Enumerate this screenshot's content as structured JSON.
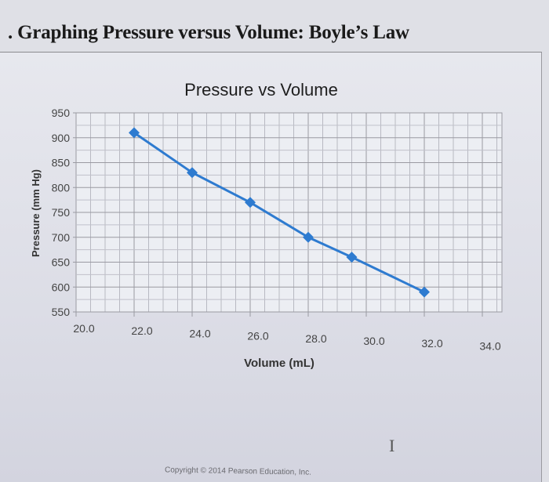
{
  "page": {
    "heading": "Graphing Pressure versus Volume: Boyle’s Law",
    "bullet": ".",
    "copyright": "Copyright © 2014 Pearson Education, Inc.",
    "cursor_glyph": "I"
  },
  "chart_data": {
    "type": "line",
    "title": "Pressure vs Volume",
    "xlabel": "Volume (mL)",
    "ylabel": "Pressure (mm Hg)",
    "xlim": [
      20.0,
      34.0
    ],
    "ylim": [
      550,
      950
    ],
    "x_ticks": [
      "20.0",
      "22.0",
      "24.0",
      "26.0",
      "28.0",
      "30.0",
      "32.0",
      "34.0"
    ],
    "y_ticks": [
      "950",
      "900",
      "850",
      "800",
      "750",
      "700",
      "650",
      "600",
      "550"
    ],
    "grid": true,
    "legend": "none",
    "series": [
      {
        "name": "Pressure",
        "color": "#2e7bd0",
        "marker": "diamond",
        "x": [
          22.0,
          24.0,
          26.0,
          28.0,
          29.5,
          32.0
        ],
        "values": [
          910,
          830,
          770,
          700,
          660,
          590
        ]
      }
    ]
  }
}
